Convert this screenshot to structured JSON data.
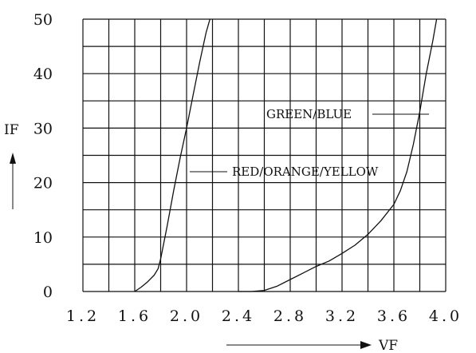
{
  "chart_data": {
    "type": "line",
    "title": "",
    "xlabel": "VF",
    "ylabel": "IF",
    "xlim": [
      1.2,
      4.0
    ],
    "ylim": [
      0,
      50
    ],
    "x_ticks": [
      "1.2",
      "1.6",
      "2.0",
      "2.4",
      "2.8",
      "3.2",
      "3.6",
      "4.0"
    ],
    "y_ticks": [
      "0",
      "10",
      "20",
      "30",
      "40",
      "50"
    ],
    "grid": true,
    "series": [
      {
        "name": "RED/ORANGE/YELLOW",
        "x": [
          1.6,
          1.65,
          1.7,
          1.75,
          1.78,
          1.8,
          1.85,
          1.9,
          1.95,
          2.0,
          2.05,
          2.1,
          2.15,
          2.18
        ],
        "y": [
          0,
          0.8,
          1.8,
          3.0,
          4.2,
          6.0,
          12.0,
          18.5,
          24.5,
          30.0,
          36.0,
          42.0,
          47.5,
          50
        ]
      },
      {
        "name": "GREEN/BLUE",
        "x": [
          2.4,
          2.5,
          2.6,
          2.7,
          2.8,
          2.9,
          3.0,
          3.1,
          3.2,
          3.3,
          3.4,
          3.5,
          3.6,
          3.65,
          3.7,
          3.75,
          3.8,
          3.85,
          3.9,
          3.93
        ],
        "y": [
          0,
          0,
          0.2,
          1.0,
          2.2,
          3.4,
          4.6,
          5.6,
          7.0,
          8.5,
          10.5,
          13.0,
          16.0,
          18.5,
          22.0,
          27.0,
          33.0,
          40.0,
          46.0,
          50
        ]
      }
    ],
    "annotations": [
      {
        "text": "RED/ORANGE/YELLOW",
        "series": "RED/ORANGE/YELLOW"
      },
      {
        "text": "GREEN/BLUE",
        "series": "GREEN/BLUE"
      }
    ]
  }
}
